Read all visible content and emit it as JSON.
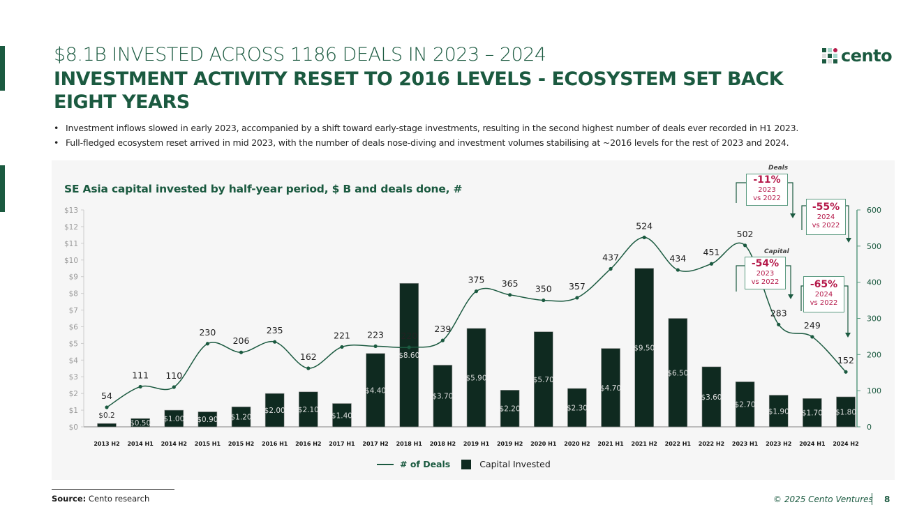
{
  "header": {
    "subtitle": "$8.1B INVESTED ACROSS 1186 DEALS IN 2023 – 2024",
    "title": "INVESTMENT ACTIVITY RESET TO 2016 LEVELS - ECOSYSTEM SET BACK EIGHT YEARS"
  },
  "logo": {
    "text": "cento"
  },
  "bullets": [
    "Investment inflows slowed in early 2023, accompanied by a shift toward early-stage investments, resulting in the second highest number of deals ever recorded in H1 2023.",
    "Full-fledged ecosystem reset arrived in mid 2023, with the number of deals nose-diving and investment volumes stabilising at ~2016 levels for the rest of 2023 and 2024."
  ],
  "chart_data": {
    "type": "bar+line",
    "title": "SE Asia capital invested by half-year period, $ B and deals done, #",
    "categories": [
      "2013 H2",
      "2014 H1",
      "2014 H2",
      "2015 H1",
      "2015 H2",
      "2016 H1",
      "2016 H2",
      "2017 H1",
      "2017 H2",
      "2018 H1",
      "2018 H2",
      "2019 H1",
      "2019 H2",
      "2020 H1",
      "2020 H2",
      "2021 H1",
      "2021 H2",
      "2022 H1",
      "2022 H2",
      "2023 H1",
      "2023 H2",
      "2024 H1",
      "2024 H2"
    ],
    "series": [
      {
        "name": "Capital Invested",
        "axis": "left",
        "type": "bar",
        "values": [
          0.2,
          0.5,
          1.0,
          0.9,
          1.2,
          2.0,
          2.1,
          1.4,
          4.4,
          8.6,
          3.7,
          5.9,
          2.2,
          5.7,
          2.3,
          4.7,
          9.5,
          6.5,
          3.6,
          2.7,
          1.9,
          1.7,
          1.8
        ],
        "labels": [
          "$0.2",
          "$0.50",
          "$1.00",
          "$0.90",
          "$1.20",
          "$2.00",
          "$2.10",
          "$1.40",
          "$4.40",
          "$8.60",
          "$3.70",
          "$5.90",
          "$2.20",
          "$5.70",
          "$2.30",
          "$4.70",
          "$9.50",
          "$6.50",
          "$3.60",
          "$2.70",
          "$1.90",
          "$1.70",
          "$1.80"
        ]
      },
      {
        "name": "# of Deals",
        "axis": "right",
        "type": "line",
        "values": [
          54,
          111,
          110,
          230,
          206,
          235,
          162,
          221,
          223,
          220,
          239,
          375,
          365,
          350,
          357,
          437,
          524,
          434,
          451,
          502,
          283,
          249,
          152
        ]
      }
    ],
    "left_axis": {
      "ylim": [
        0,
        13
      ],
      "ticks": [
        "$0",
        "$1",
        "$2",
        "$3",
        "$4",
        "$5",
        "$6",
        "$7",
        "$8",
        "$9",
        "$10",
        "$11",
        "$12",
        "$13"
      ]
    },
    "right_axis": {
      "ylim": [
        0,
        600
      ],
      "ticks": [
        "0",
        "100",
        "200",
        "300",
        "400",
        "500",
        "600"
      ]
    },
    "legend": {
      "placement": "bottom",
      "line_label": "# of Deals",
      "bar_label": "Capital Invested"
    },
    "annotations": {
      "deals_label": "Deals",
      "capital_label": "Capital",
      "boxes": [
        {
          "pct": "-11%",
          "l1": "2023",
          "l2": "vs 2022"
        },
        {
          "pct": "-55%",
          "l1": "2024",
          "l2": "vs 2022"
        },
        {
          "pct": "-54%",
          "l1": "2023",
          "l2": "vs 2022"
        },
        {
          "pct": "-65%",
          "l1": "2024",
          "l2": "vs 2022"
        }
      ]
    }
  },
  "colors": {
    "brand": "#1b5a40",
    "bar": "#0f2a20",
    "accent": "#b5194a"
  },
  "footer": {
    "source_label": "Source:",
    "source": " Cento research",
    "copyright": "© 2025 Cento Ventures",
    "page": "8"
  }
}
